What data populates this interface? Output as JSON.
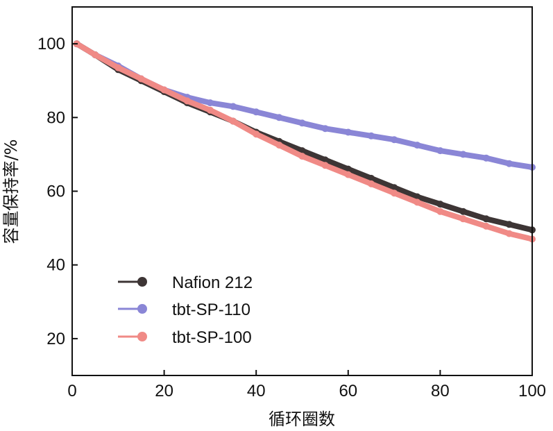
{
  "chart_data": {
    "type": "line",
    "title": "",
    "xlabel": "循环圈数",
    "ylabel": "容量保持率/%",
    "xlim": [
      0,
      100
    ],
    "ylim": [
      10,
      110
    ],
    "xticks": [
      0,
      20,
      40,
      60,
      80,
      100
    ],
    "yticks": [
      20,
      40,
      60,
      80,
      100
    ],
    "grid": false,
    "legend_position": "lower-left",
    "x": [
      1,
      5,
      10,
      15,
      20,
      25,
      30,
      35,
      40,
      45,
      50,
      55,
      60,
      65,
      70,
      75,
      80,
      85,
      90,
      95,
      100
    ],
    "series": [
      {
        "name": "Nafion 212",
        "color": "#3d3535",
        "values": [
          100,
          97,
          93,
          90,
          87,
          84,
          81.5,
          79,
          76,
          73.5,
          71,
          68.5,
          66,
          63.5,
          61,
          58.5,
          56.5,
          54.5,
          52.5,
          51,
          49.5
        ]
      },
      {
        "name": "tbt-SP-110",
        "color": "#8a86d6",
        "values": [
          100,
          97,
          94,
          90.5,
          87.5,
          85.5,
          84,
          83,
          81.5,
          80,
          78.5,
          77,
          76,
          75,
          74,
          72.5,
          71,
          70,
          69,
          67.5,
          66.5
        ]
      },
      {
        "name": "tbt-SP-100",
        "color": "#f08a86",
        "values": [
          100,
          97,
          93.5,
          90.5,
          87.5,
          84.5,
          82,
          79,
          75.5,
          72.5,
          69.5,
          67,
          64.5,
          62,
          59.5,
          57,
          54.5,
          52.5,
          50.5,
          48.5,
          47
        ]
      }
    ]
  }
}
